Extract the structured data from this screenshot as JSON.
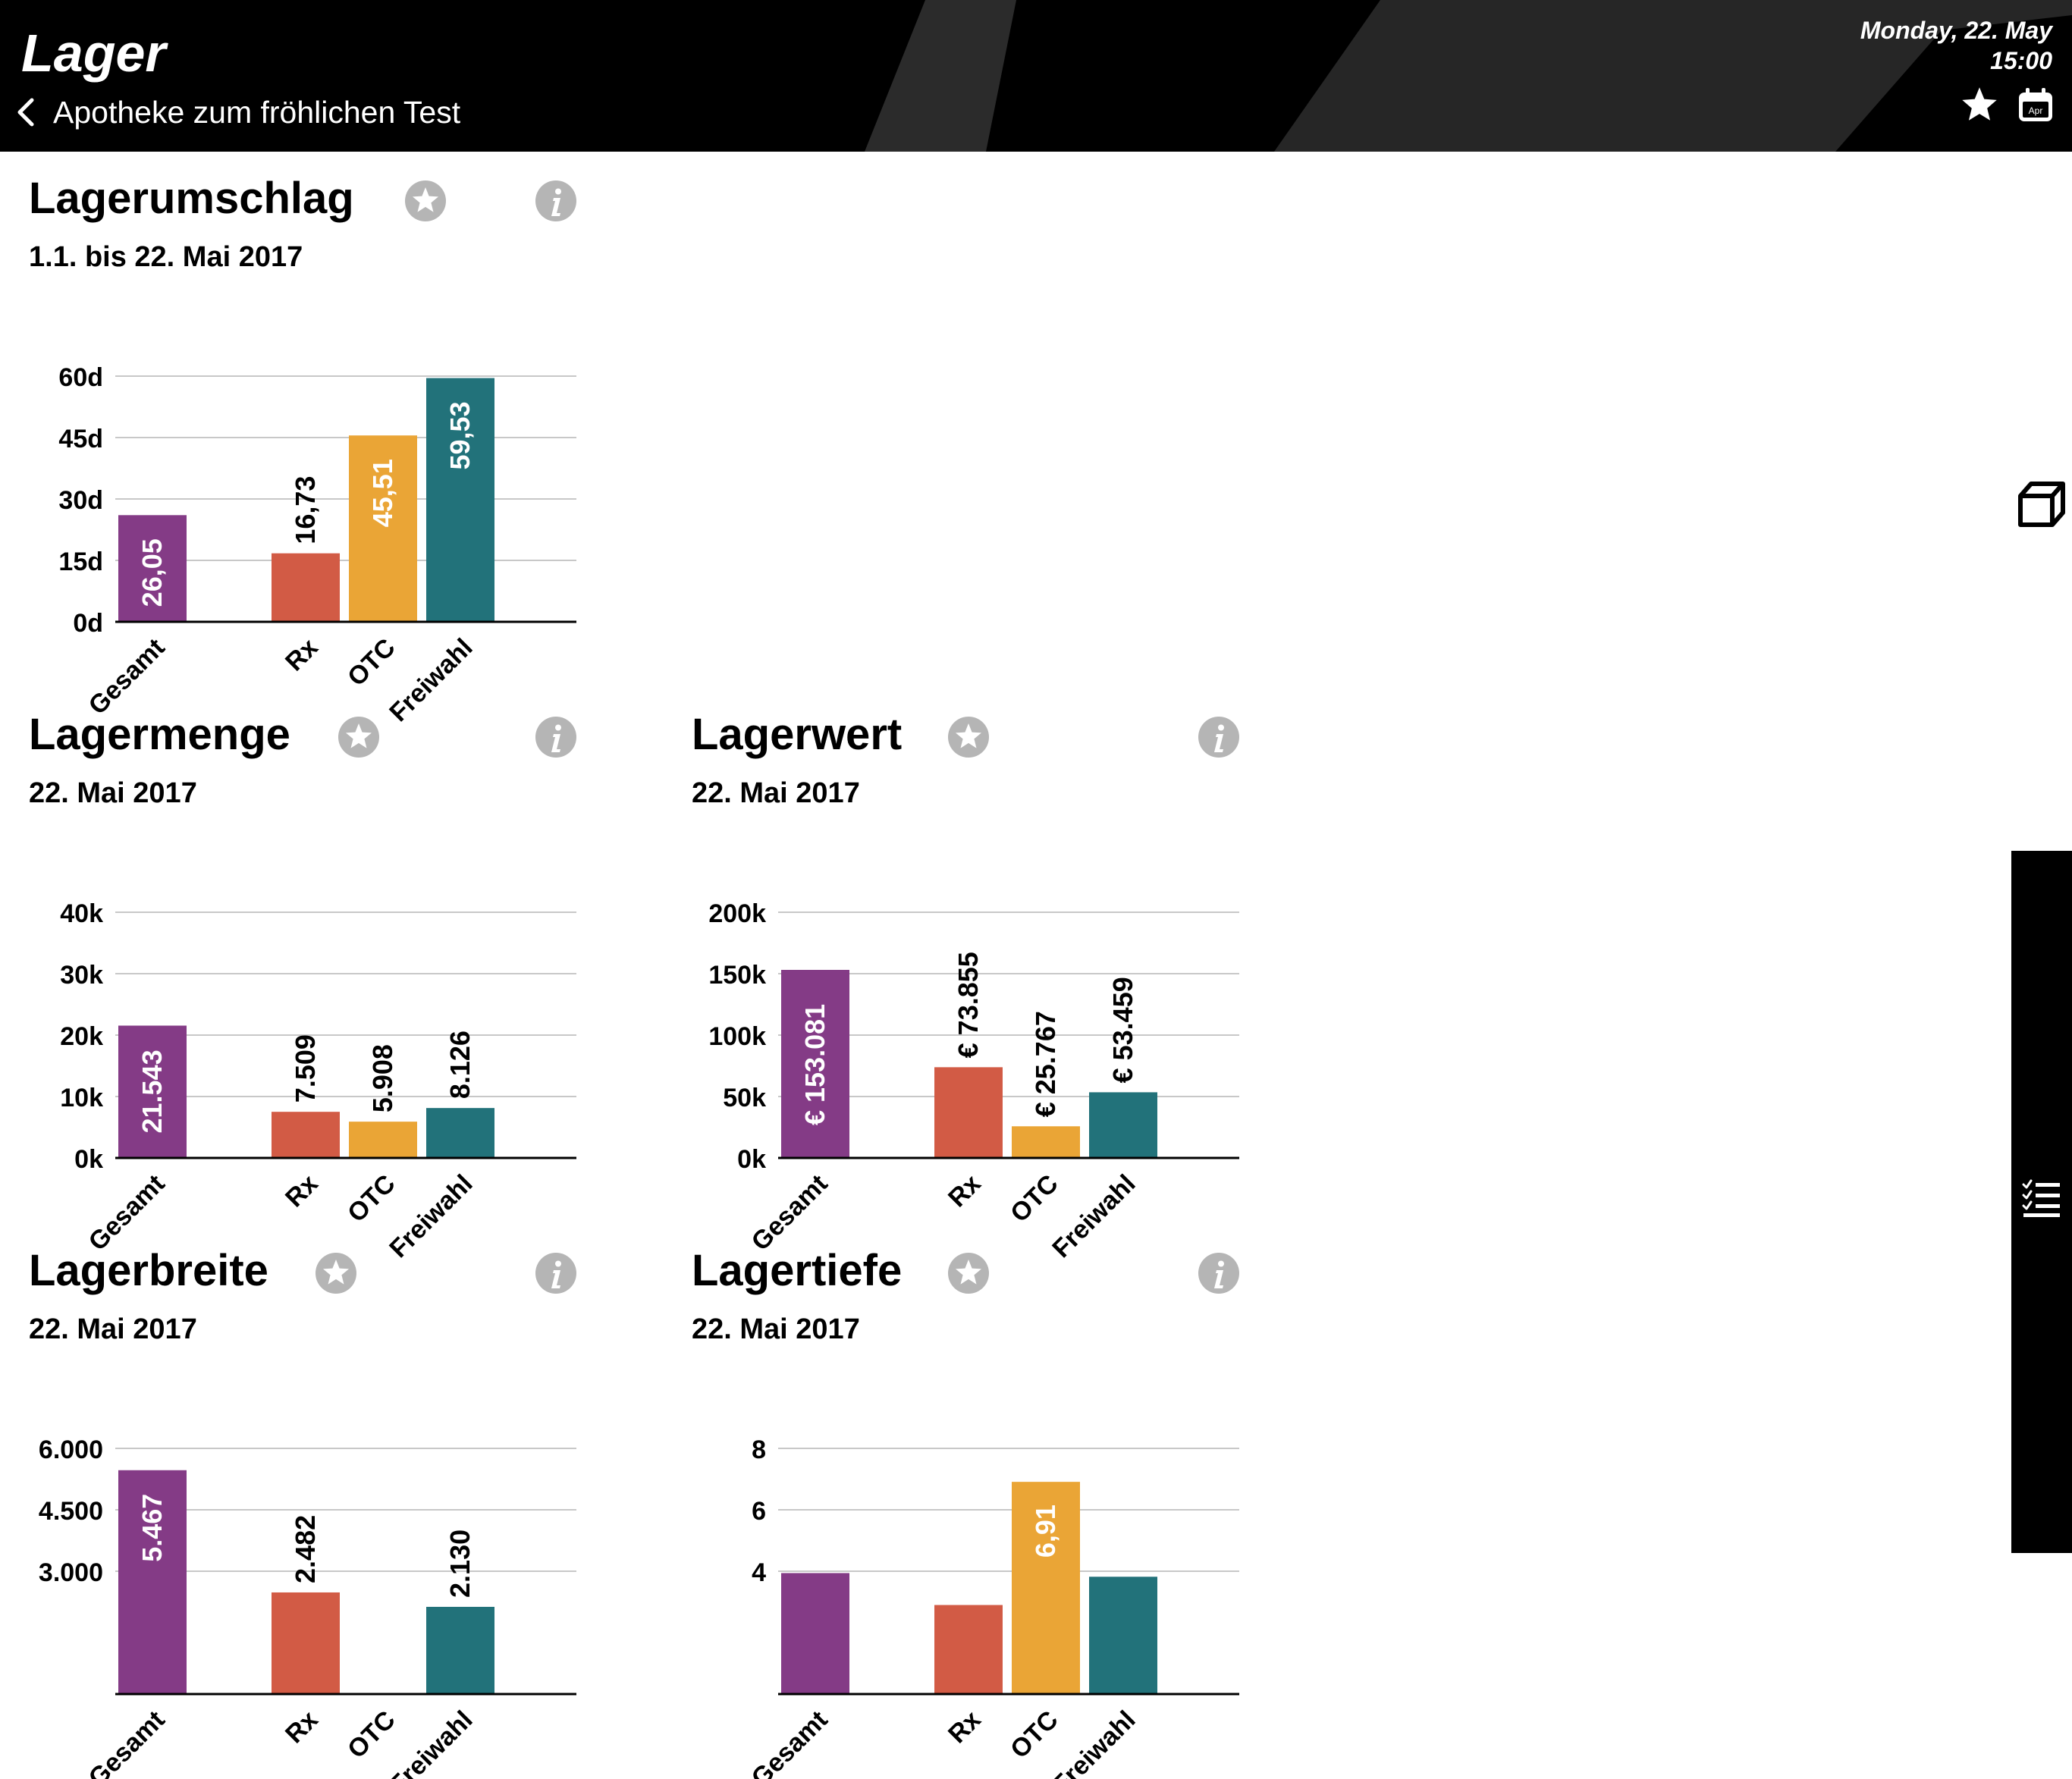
{
  "header": {
    "title": "Lager",
    "back_label": "Apotheke zum fröhlichen Test",
    "date": "Monday, 22. May",
    "time": "15:00",
    "calendar_icon_label": "Apr"
  },
  "icons": {
    "back": "chevron-left-icon",
    "favorite": "star-icon",
    "calendar": "calendar-icon",
    "info": "info-icon",
    "cube": "cube-icon",
    "checklist": "checklist-icon"
  },
  "colors": {
    "gesamt": "#843b86",
    "rx": "#d25b45",
    "otc": "#eaa536",
    "freiwahl": "#22727a",
    "header_bg": "#000000",
    "icon_gray": "#b5b5b5"
  },
  "panels": [
    {
      "id": "lagerumschlag",
      "title": "Lagerumschlag",
      "subtitle": "1.1. bis 22. Mai 2017",
      "chart_data": {
        "type": "bar",
        "categories": [
          "Gesamt",
          "Rx",
          "OTC",
          "Freiwahl"
        ],
        "values": [
          26.05,
          16.73,
          45.51,
          59.53
        ],
        "value_labels": [
          "26,05",
          "16,73",
          "45,51",
          "59,53"
        ],
        "yticks": [
          0,
          15,
          30,
          45,
          60
        ],
        "ytick_labels": [
          "0d",
          "15d",
          "30d",
          "45d",
          "60d"
        ],
        "ylim": [
          0,
          60
        ],
        "grid": true
      }
    },
    {
      "id": "lagermenge",
      "title": "Lagermenge",
      "subtitle": "22. Mai 2017",
      "chart_data": {
        "type": "bar",
        "categories": [
          "Gesamt",
          "Rx",
          "OTC",
          "Freiwahl"
        ],
        "values": [
          21543,
          7509,
          5908,
          8126
        ],
        "value_labels": [
          "21.543",
          "7.509",
          "5.908",
          "8.126"
        ],
        "yticks": [
          0,
          10000,
          20000,
          30000,
          40000
        ],
        "ytick_labels": [
          "0k",
          "10k",
          "20k",
          "30k",
          "40k"
        ],
        "ylim": [
          0,
          40000
        ],
        "grid": true
      }
    },
    {
      "id": "lagerwert",
      "title": "Lagerwert",
      "subtitle": "22. Mai 2017",
      "chart_data": {
        "type": "bar",
        "categories": [
          "Gesamt",
          "Rx",
          "OTC",
          "Freiwahl"
        ],
        "values": [
          153081,
          73855,
          25767,
          53459
        ],
        "value_labels": [
          "€ 153.081",
          "€ 73.855",
          "€ 25.767",
          "€ 53.459"
        ],
        "yticks": [
          0,
          50000,
          100000,
          150000,
          200000
        ],
        "ytick_labels": [
          "0k",
          "50k",
          "100k",
          "150k",
          "200k"
        ],
        "ylim": [
          0,
          200000
        ],
        "grid": true
      }
    },
    {
      "id": "lagerbreite",
      "title": "Lagerbreite",
      "subtitle": "22. Mai 2017",
      "chart_data": {
        "type": "bar",
        "categories": [
          "Gesamt",
          "Rx",
          "OTC",
          "Freiwahl"
        ],
        "values": [
          5467,
          2482,
          null,
          2130
        ],
        "value_labels": [
          "5.467",
          "2.482",
          "",
          "2.130"
        ],
        "yticks": [
          3000,
          4500,
          6000
        ],
        "ytick_labels": [
          "3.000",
          "4.500",
          "6.000"
        ],
        "ylim": [
          0,
          6000
        ],
        "grid": true
      }
    },
    {
      "id": "lagertiefe",
      "title": "Lagertiefe",
      "subtitle": "22. Mai 2017",
      "chart_data": {
        "type": "bar",
        "categories": [
          "Gesamt",
          "Rx",
          "OTC",
          "Freiwahl"
        ],
        "values": [
          3.94,
          2.9,
          6.91,
          3.82
        ],
        "value_labels": [
          "",
          "",
          "6,91",
          ""
        ],
        "yticks": [
          4,
          6,
          8
        ],
        "ytick_labels": [
          "4",
          "6",
          "8"
        ],
        "ylim": [
          0,
          8
        ],
        "grid": true
      }
    }
  ]
}
